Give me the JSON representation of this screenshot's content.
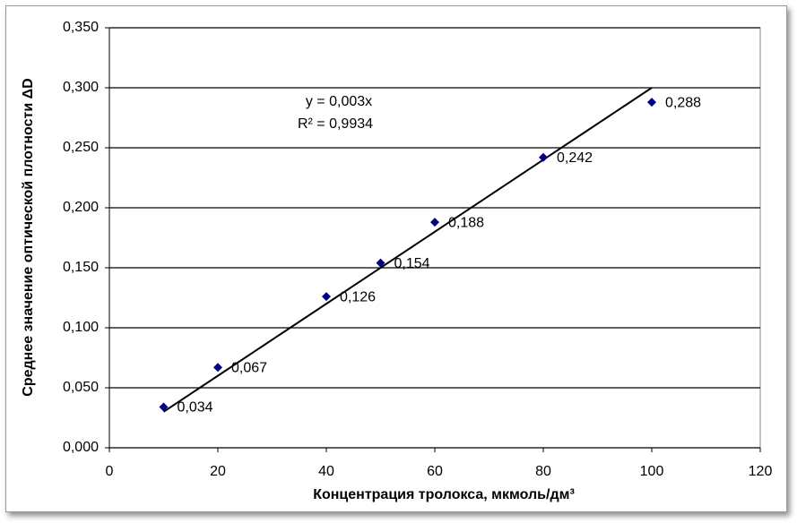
{
  "chart_data": {
    "type": "scatter",
    "y_axis_title": "Среднее значение оптической плотности  ΔD",
    "x_axis_title": "Концентрация тролокса, мкмоль/дм³",
    "annotations": [
      "y = 0,003x",
      "R² = 0,9934"
    ],
    "x": [
      10,
      20,
      40,
      50,
      60,
      80,
      100
    ],
    "series": [
      {
        "name": "ΔD",
        "color": "#000080",
        "values": [
          0.034,
          0.067,
          0.126,
          0.154,
          0.188,
          0.242,
          0.288
        ],
        "value_labels": [
          "0,034",
          "0,067",
          "0,126",
          "0,154",
          "0,188",
          "0,242",
          "0,288"
        ]
      }
    ],
    "trendline": {
      "slope": 0.003,
      "color": "#000000"
    },
    "xlim": [
      0,
      120
    ],
    "xticks": [
      0,
      20,
      40,
      60,
      80,
      100,
      120
    ],
    "ylim": [
      0,
      0.35
    ],
    "yticks": [
      {
        "value": 0,
        "label": "0,000"
      },
      {
        "value": 0.05,
        "label": "0,050"
      },
      {
        "value": 0.1,
        "label": "0,100"
      },
      {
        "value": 0.15,
        "label": "0,150"
      },
      {
        "value": 0.2,
        "label": "0,200"
      },
      {
        "value": 0.25,
        "label": "0,250"
      },
      {
        "value": 0.3,
        "label": "0,300"
      },
      {
        "value": 0.35,
        "label": "0,350"
      }
    ],
    "grid": true
  }
}
